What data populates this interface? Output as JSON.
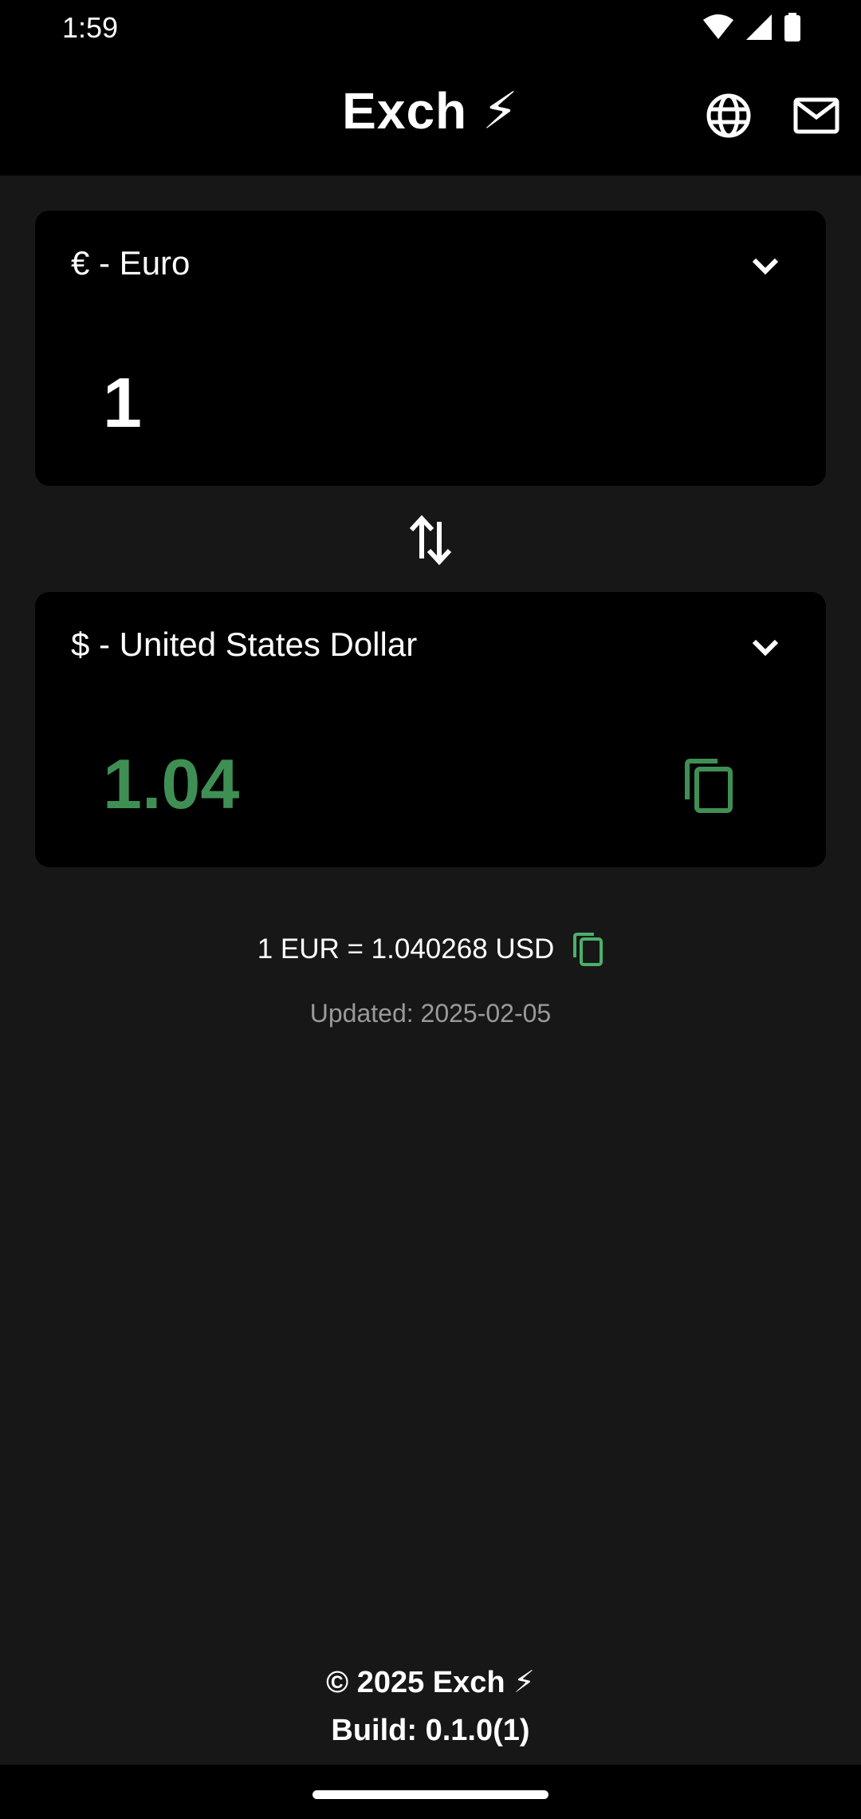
{
  "status_bar": {
    "time": "1:59"
  },
  "header": {
    "title": "Exch ⚡",
    "icons": [
      "globe-icon",
      "mail-icon"
    ]
  },
  "from_card": {
    "currency_label": "€ - Euro",
    "amount": "1"
  },
  "to_card": {
    "currency_label": "$ - United States Dollar",
    "amount": "1.04"
  },
  "rate": {
    "text": "1 EUR = 1.040268 USD",
    "updated": "Updated: 2025-02-05"
  },
  "footer": {
    "copyright": "© 2025 Exch ⚡",
    "build_label": "Build:",
    "build_version": "0.1.0(1)"
  },
  "colors": {
    "background": "#171717",
    "card": "#000000",
    "accent_green": "#3f8f55",
    "copy_green": "#4caf6a"
  }
}
